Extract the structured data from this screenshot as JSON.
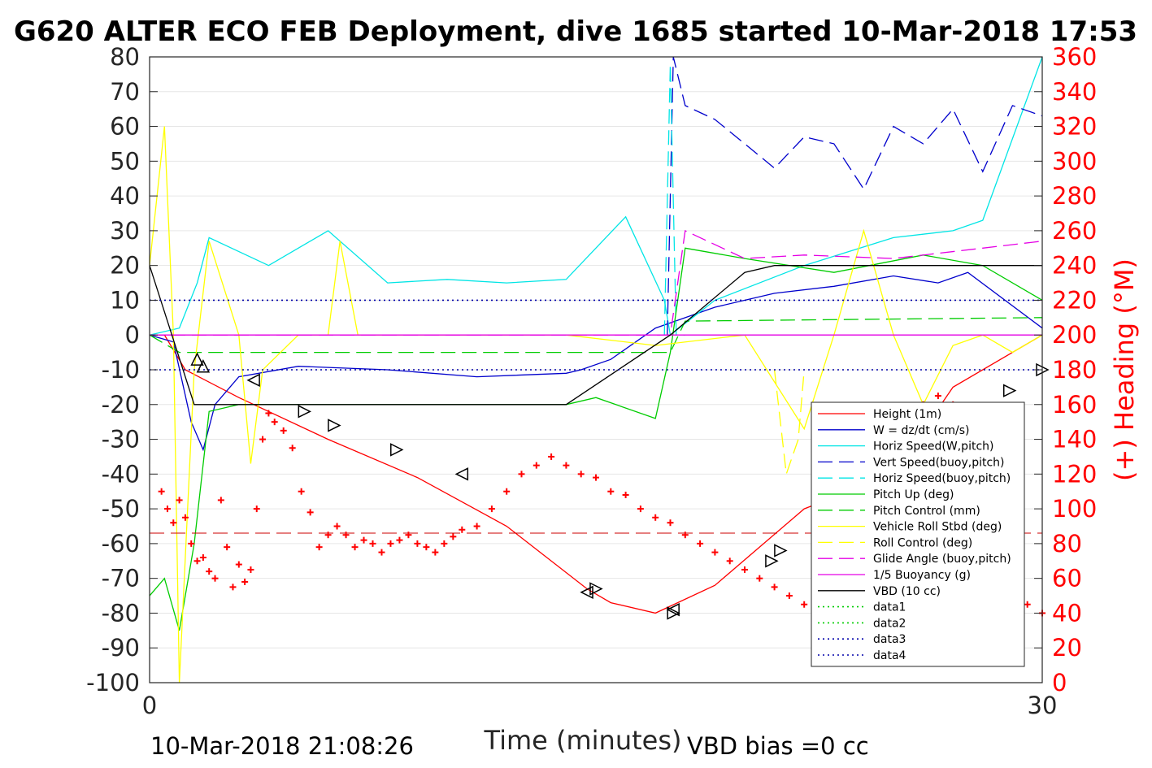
{
  "title": "G620 ALTER ECO FEB Deployment, dive 1685 started 10-Mar-2018 17:53",
  "footer": {
    "left": "10-Mar-2018 21:08:26",
    "right": "VBD bias =0 cc"
  },
  "colors": {
    "height": "#ff0000",
    "w": "#0000cc",
    "horiz": "#00e5e5",
    "pitch": "#00cc00",
    "roll": "#ffff00",
    "glide": "#e500e5",
    "vbd": "#000000",
    "heading": "#ff0000"
  },
  "chart_data": {
    "type": "line",
    "title": "G620 ALTER ECO FEB Deployment, dive 1685 started 10-Mar-2018 17:53",
    "xlabel": "Time (minutes)",
    "ylabel": "",
    "y2label": "(+) Heading (°M)",
    "xlim": [
      0,
      30
    ],
    "ylim": [
      -100,
      80
    ],
    "y2lim": [
      0,
      360
    ],
    "xticks": [
      "0",
      "30"
    ],
    "yticks": [
      "80",
      "70",
      "60",
      "50",
      "40",
      "30",
      "20",
      "10",
      "0",
      "-10",
      "-20",
      "-30",
      "-40",
      "-50",
      "-60",
      "-70",
      "-80",
      "-90",
      "-100"
    ],
    "y2ticks": [
      "360",
      "340",
      "320",
      "300",
      "280",
      "260",
      "240",
      "220",
      "200",
      "180",
      "160",
      "140",
      "120",
      "100",
      "80",
      "60",
      "40",
      "20",
      "0"
    ],
    "grid": true,
    "legend_position": "bottom-right",
    "series": [
      {
        "name": "Height (1m)",
        "color": "#ff0000",
        "style": "solid",
        "x": [
          0,
          0.5,
          1.2,
          3,
          6,
          9,
          12,
          14.7,
          15.5,
          17,
          19,
          22,
          25,
          27,
          30
        ],
        "y": [
          0,
          0,
          -10,
          -18,
          -30,
          -41,
          -55,
          -73,
          -77,
          -80,
          -72,
          -50,
          -40,
          -15,
          0
        ]
      },
      {
        "name": "W = dz/dt (cm/s)",
        "color": "#0000cc",
        "style": "solid",
        "x": [
          0,
          0.8,
          1.4,
          1.8,
          2.2,
          3,
          5,
          8,
          11,
          14,
          14.5,
          15.5,
          17,
          19,
          21,
          23,
          25,
          26.5,
          27.5,
          30
        ],
        "y": [
          0,
          -2,
          -25,
          -33,
          -20,
          -12,
          -9,
          -10,
          -12,
          -11,
          -10,
          -7,
          2,
          8,
          12,
          14,
          17,
          15,
          18,
          2
        ]
      },
      {
        "name": "Horiz Speed(W,pitch)",
        "color": "#00e5e5",
        "style": "solid",
        "x": [
          0,
          1,
          1.6,
          2,
          4,
          6,
          8,
          10,
          12,
          14,
          16,
          17.3,
          17.5,
          19,
          22,
          25,
          27,
          28,
          30
        ],
        "y": [
          0,
          2,
          15,
          28,
          20,
          30,
          15,
          16,
          15,
          16,
          34,
          10,
          0,
          10,
          20,
          28,
          30,
          33,
          80
        ]
      },
      {
        "name": "Vert Speed(buoy,pitch)",
        "color": "#0000cc",
        "style": "dashed",
        "x": [
          17.4,
          17.6,
          18,
          19,
          20,
          21,
          22,
          23,
          24,
          25,
          26,
          27,
          28,
          29,
          30
        ],
        "y": [
          0,
          80,
          66,
          62,
          55,
          48,
          57,
          55,
          42,
          60,
          55,
          65,
          47,
          66,
          63
        ]
      },
      {
        "name": "Horiz Speed(buoy,pitch)",
        "color": "#00e5e5",
        "style": "dashed",
        "x": [
          17.3,
          17.5,
          17.7,
          18
        ],
        "y": [
          0,
          78,
          0,
          0
        ]
      },
      {
        "name": "Pitch Up (deg)",
        "color": "#00cc00",
        "style": "solid",
        "x": [
          0,
          0.5,
          1,
          1.5,
          2,
          3,
          5,
          8,
          11,
          14,
          15,
          17,
          17.5,
          18,
          20,
          23,
          26,
          28,
          30
        ],
        "y": [
          -75,
          -70,
          -85,
          -60,
          -22,
          -20,
          -20,
          -20,
          -20,
          -20,
          -18,
          -24,
          -5,
          25,
          22,
          18,
          23,
          20,
          10
        ]
      },
      {
        "name": "Pitch Control (mm)",
        "color": "#00cc00",
        "style": "dashed",
        "x": [
          0,
          1,
          14,
          17.5,
          18,
          30
        ],
        "y": [
          0,
          -5,
          -5,
          -5,
          4,
          5
        ]
      },
      {
        "name": "Vehicle Roll Stbd (deg)",
        "color": "#ffff00",
        "style": "solid",
        "x": [
          0,
          0.5,
          0.8,
          1,
          1.5,
          2,
          3,
          3.4,
          3.8,
          5,
          6,
          6.4,
          7,
          9,
          10,
          14,
          17,
          20,
          22,
          23,
          24,
          25,
          26,
          27,
          28,
          29,
          30
        ],
        "y": [
          20,
          60,
          0,
          -100,
          -10,
          27,
          0,
          -37,
          -10,
          0,
          0,
          27,
          0,
          0,
          0,
          0,
          -3,
          0,
          -27,
          0,
          30,
          0,
          -20,
          -3,
          0,
          -5,
          0
        ]
      },
      {
        "name": "Roll Control (deg)",
        "color": "#ffff00",
        "style": "dashed",
        "x": [
          21,
          21.4,
          21.8,
          22
        ],
        "y": [
          -10,
          -40,
          -30,
          -10
        ]
      },
      {
        "name": "Glide Angle (buoy,pitch)",
        "color": "#e500e5",
        "style": "dashed",
        "x": [
          0,
          17.5,
          18,
          20,
          22,
          25,
          28,
          30
        ],
        "y": [
          0,
          0,
          30,
          22,
          23,
          22,
          25,
          27
        ]
      },
      {
        "name": "1/5 Buoyancy (g)",
        "color": "#e500e5",
        "style": "solid",
        "x": [
          0,
          30
        ],
        "y": [
          0,
          0
        ]
      },
      {
        "name": "VBD (10 cc)",
        "color": "#000000",
        "style": "solid",
        "x": [
          0,
          1.5,
          14,
          17.5,
          20,
          21,
          30
        ],
        "y": [
          20,
          -20,
          -20,
          0,
          18,
          20,
          20
        ]
      },
      {
        "name": "data1",
        "color": "#00cc00",
        "style": "dotted",
        "x": [],
        "y": []
      },
      {
        "name": "data2",
        "color": "#00cc00",
        "style": "dotted",
        "x": [],
        "y": []
      },
      {
        "name": "data3",
        "color": "#0000aa",
        "style": "dotted",
        "x": [
          0,
          30
        ],
        "y": [
          10,
          10
        ]
      },
      {
        "name": "data4",
        "color": "#0000aa",
        "style": "dotted",
        "x": [
          0,
          30
        ],
        "y": [
          -10,
          -10
        ]
      }
    ],
    "heading": {
      "name": "(+) Heading",
      "color": "#ff0000",
      "marker": "+",
      "reference_line": 86,
      "x": [
        0.4,
        0.6,
        0.8,
        1.0,
        1.2,
        1.4,
        1.6,
        1.8,
        2.0,
        2.2,
        2.4,
        2.6,
        2.8,
        3,
        3.2,
        3.4,
        3.6,
        3.8,
        4,
        4.2,
        4.5,
        4.8,
        5.1,
        5.4,
        5.7,
        6,
        6.3,
        6.6,
        6.9,
        7.2,
        7.5,
        7.8,
        8.1,
        8.4,
        8.7,
        9,
        9.3,
        9.6,
        9.9,
        10.2,
        10.5,
        11,
        11.5,
        12,
        12.5,
        13,
        13.5,
        14,
        14.5,
        15,
        15.5,
        16,
        16.5,
        17,
        17.5,
        18,
        18.5,
        19,
        19.5,
        20,
        20.5,
        21,
        21.5,
        22,
        22.5,
        23,
        23.5,
        24,
        24.5,
        25,
        25.5,
        26,
        26.5,
        27,
        27.5,
        28,
        28.5,
        29,
        29.5,
        30
      ],
      "y": [
        110,
        100,
        92,
        105,
        95,
        80,
        70,
        72,
        64,
        60,
        105,
        78,
        55,
        68,
        58,
        65,
        100,
        140,
        155,
        150,
        145,
        135,
        110,
        98,
        78,
        85,
        90,
        85,
        78,
        82,
        80,
        75,
        80,
        82,
        85,
        80,
        78,
        75,
        80,
        84,
        88,
        90,
        100,
        110,
        120,
        125,
        130,
        125,
        120,
        118,
        110,
        108,
        100,
        95,
        92,
        85,
        80,
        75,
        70,
        65,
        60,
        55,
        50,
        45,
        40,
        80,
        90,
        100,
        120,
        145,
        150,
        160,
        165,
        160,
        110,
        90,
        80,
        60,
        45,
        40
      ]
    },
    "markers": {
      "right_triangle": [
        [
          5.2,
          -22
        ],
        [
          6.2,
          -26
        ],
        [
          8.3,
          -33
        ],
        [
          15,
          -73
        ],
        [
          17.6,
          -80
        ],
        [
          20.9,
          -65
        ],
        [
          21.2,
          -62
        ],
        [
          23.1,
          -52
        ],
        [
          24.4,
          -47
        ],
        [
          26.5,
          -35
        ],
        [
          27.2,
          -29
        ],
        [
          28.9,
          -16
        ],
        [
          30,
          -10
        ]
      ],
      "left_triangle": [
        [
          3.5,
          -13
        ],
        [
          10.5,
          -40
        ],
        [
          14.7,
          -74
        ],
        [
          17.6,
          -79
        ]
      ],
      "up_triangle": [
        [
          1.6,
          -7
        ],
        [
          1.8,
          -9
        ]
      ]
    }
  }
}
